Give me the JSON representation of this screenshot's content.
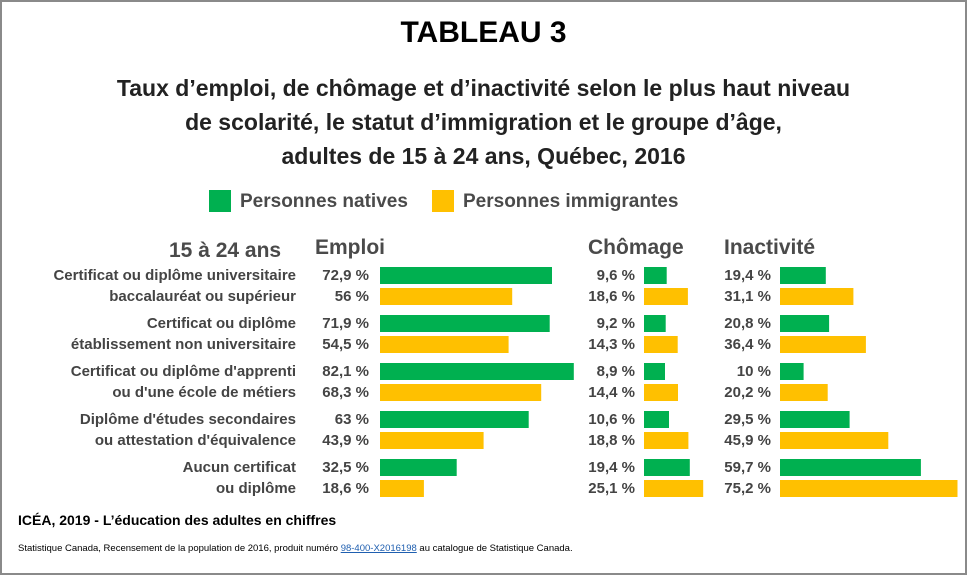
{
  "header": {
    "title": "TABLEAU 3",
    "subtitle_lines": [
      "Taux d’emploi, de chômage et d’inactivité selon le plus haut niveau",
      "de scolarité, le statut d’immigration et le groupe d’âge,",
      "adultes de 15 à 24 ans, Québec, 2016"
    ]
  },
  "legend": [
    {
      "label": "Personnes natives",
      "color": "#00b050"
    },
    {
      "label": "Personnes immigrantes",
      "color": "#ffc000"
    }
  ],
  "chart_data": {
    "type": "bar",
    "orientation": "horizontal",
    "group_label": "15 à 24 ans",
    "categories": [
      [
        "Certificat ou diplôme universitaire",
        "baccalauréat ou supérieur"
      ],
      [
        "Certificat ou diplôme",
        "établissement non universitaire"
      ],
      [
        "Certificat ou diplôme d'apprenti",
        "ou d'une école de métiers"
      ],
      [
        "Diplôme d'études secondaires",
        "ou attestation d'équivalence"
      ],
      [
        "Aucun certificat",
        "ou diplôme"
      ]
    ],
    "panels": [
      {
        "name": "Emploi",
        "series": [
          {
            "name": "Personnes natives",
            "values": [
              72.9,
              71.9,
              82.1,
              63,
              32.5
            ],
            "labels": [
              "72,9 %",
              "71,9 %",
              "82,1 %",
              "63 %",
              "32,5 %"
            ]
          },
          {
            "name": "Personnes immigrantes",
            "values": [
              56,
              54.5,
              68.3,
              43.9,
              18.6
            ],
            "labels": [
              "56 %",
              "54,5 %",
              "68,3 %",
              "43,9 %",
              "18,6 %"
            ]
          }
        ]
      },
      {
        "name": "Chômage",
        "series": [
          {
            "name": "Personnes natives",
            "values": [
              9.6,
              9.2,
              8.9,
              10.6,
              19.4
            ],
            "labels": [
              "9,6 %",
              "9,2 %",
              "8,9 %",
              "10,6 %",
              "19,4 %"
            ]
          },
          {
            "name": "Personnes immigrantes",
            "values": [
              18.6,
              14.3,
              14.4,
              18.8,
              25.1
            ],
            "labels": [
              "18,6 %",
              "14,3 %",
              "14,4 %",
              "18,8 %",
              "25,1 %"
            ]
          }
        ]
      },
      {
        "name": "Inactivité",
        "series": [
          {
            "name": "Personnes natives",
            "values": [
              19.4,
              20.8,
              10,
              29.5,
              59.7
            ],
            "labels": [
              "19,4 %",
              "20,8 %",
              "10 %",
              "29,5 %",
              "59,7 %"
            ]
          },
          {
            "name": "Personnes immigrantes",
            "values": [
              31.1,
              36.4,
              20.2,
              45.9,
              75.2
            ],
            "labels": [
              "31,1 %",
              "36,4 %",
              "20,2 %",
              "45,9 %",
              "75,2 %"
            ]
          }
        ]
      }
    ]
  },
  "footer": {
    "source_main": "ICÉA, 2019 - L’éducation des adultes en chiffres",
    "source_note_before": "Statistique Canada, Recensement de la population de 2016, produit numéro ",
    "source_link": "98-400-X2016198",
    "source_note_after": " au catalogue de Statistique Canada."
  }
}
